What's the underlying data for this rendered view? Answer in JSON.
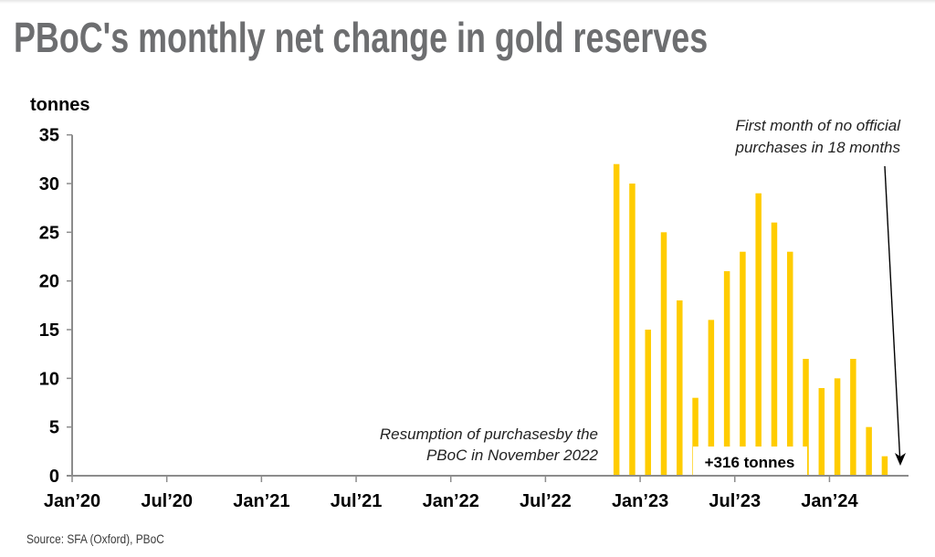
{
  "title": "PBoC's monthly net change in gold reserves",
  "source": "Source: SFA (Oxford), PBoC",
  "colors": {
    "bar": "#FFCC00",
    "title": "#6D6E70",
    "axis": "#8C8C8C",
    "text": "#000000"
  },
  "chart_data": {
    "type": "bar",
    "title": "PBoC's monthly net change in gold reserves",
    "xlabel": "",
    "ylabel": "tonnes",
    "ylim": [
      0,
      35
    ],
    "yticks": [
      0,
      5,
      10,
      15,
      20,
      25,
      30,
      35
    ],
    "xrange": [
      "Jan 2020",
      "Apr 2024"
    ],
    "xtick_labels": [
      "Jan’20",
      "Jul’20",
      "Jan’21",
      "Jul’21",
      "Jan’22",
      "Jul’22",
      "Jan’23",
      "Jul’23",
      "Jan’24"
    ],
    "categories": [
      "Nov 2022",
      "Dec 2022",
      "Jan 2023",
      "Feb 2023",
      "Mar 2023",
      "Apr 2023",
      "May 2023",
      "Jun 2023",
      "Jul 2023",
      "Aug 2023",
      "Sep 2023",
      "Oct 2023",
      "Nov 2023",
      "Dec 2023",
      "Jan 2024",
      "Feb 2024",
      "Mar 2024",
      "Apr 2024",
      "May 2024"
    ],
    "series": [
      {
        "name": "Monthly net change (tonnes)",
        "values": [
          32,
          30,
          15,
          25,
          18,
          8,
          16,
          21,
          23,
          29,
          26,
          23,
          12,
          9,
          10,
          12,
          5,
          2,
          0
        ]
      }
    ],
    "grid": false,
    "legend": "none",
    "annotations": [
      {
        "id": "resumption",
        "lines": [
          "Resumption of purchasesby the",
          "PBoC in November 2022"
        ]
      },
      {
        "id": "first-month",
        "lines": [
          "First month of no official",
          "purchases in 18 months"
        ],
        "arrow_to": "May 2024"
      },
      {
        "id": "total",
        "text": "+316 tonnes"
      }
    ]
  }
}
